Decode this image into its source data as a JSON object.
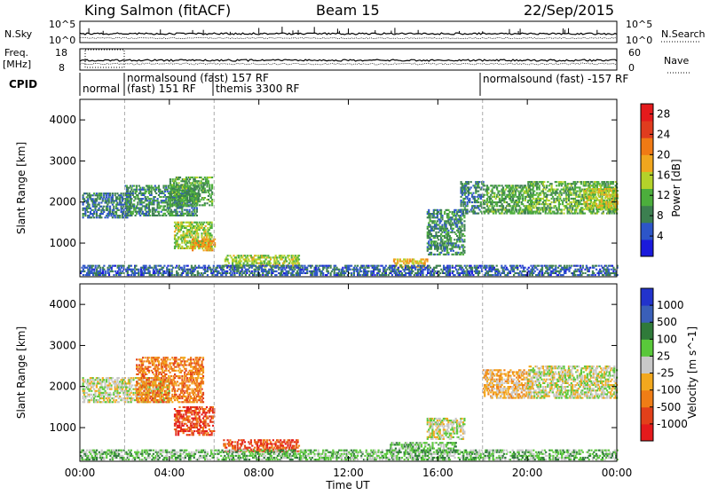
{
  "header": {
    "station": "King Salmon (fitACF)",
    "beam": "Beam 15",
    "date": "22/Sep/2015"
  },
  "info_panels": {
    "nsky_label": "N.Sky",
    "nsky_ticks": [
      "10^5",
      "10^0"
    ],
    "nsearch_label": "N.Search",
    "nsearch_ticks": [
      "10^5",
      "10^0"
    ],
    "freq_label_1": "Freq.",
    "freq_label_2": "[MHz]",
    "freq_ticks": [
      "18",
      "8"
    ],
    "nave_label": "Nave",
    "nave_ticks": [
      "60",
      "0"
    ],
    "cpid_label": "CPID",
    "cpid_programs": [
      {
        "label": "normal",
        "start_hour": 0.0
      },
      {
        "label": "normalsound (fast) 157 RF",
        "start_hour": 2.0
      },
      {
        "label": "(fast) 151 RF",
        "start_hour": 2.0
      },
      {
        "label": "themis 3300 RF",
        "start_hour": 6.0
      },
      {
        "label": "normalsound (fast) -157 RF",
        "start_hour": 18.0
      }
    ]
  },
  "colors": {
    "power": [
      "#1a1adc",
      "#2d55c8",
      "#3c7f50",
      "#4cae3c",
      "#b4d22a",
      "#f0a61e",
      "#f07a14",
      "#e03c1e",
      "#e41a1c"
    ],
    "velocity": [
      "#2233cc",
      "#3a5fb8",
      "#2f7a3a",
      "#59c83a",
      "#c8c8c8",
      "#f2a81e",
      "#ef7d16",
      "#e2401a",
      "#e41a1c"
    ]
  },
  "chart_data": [
    {
      "type": "heatmap",
      "title": "Power",
      "ylabel": "Slant Range [km]",
      "xlabel": "",
      "colorbar_label": "Power [dB]",
      "colorbar_ticks": [
        "28",
        "24",
        "20",
        "16",
        "12",
        "8",
        "4"
      ],
      "colorbar_range": [
        0,
        30
      ],
      "ylim": [
        180,
        4500
      ],
      "y_ticks": [
        "4000",
        "3000",
        "2000",
        "1000"
      ],
      "xlim_hours": [
        0,
        24
      ],
      "x_ticks": [
        "00:00",
        "04:00",
        "08:00",
        "12:00",
        "16:00",
        "20:00",
        "00:00"
      ],
      "regions": [
        {
          "t0": 0.1,
          "t1": 2.3,
          "r0": 1600,
          "r1": 2200,
          "v": 6
        },
        {
          "t0": 2.0,
          "t1": 5.2,
          "r0": 1650,
          "r1": 2400,
          "v": 8
        },
        {
          "t0": 4.0,
          "t1": 5.9,
          "r0": 1900,
          "r1": 2600,
          "v": 10
        },
        {
          "t0": 4.2,
          "t1": 5.9,
          "r0": 850,
          "r1": 1500,
          "v": 14
        },
        {
          "t0": 5.0,
          "t1": 6.0,
          "r0": 800,
          "r1": 1100,
          "v": 20
        },
        {
          "t0": 6.4,
          "t1": 9.8,
          "r0": 400,
          "r1": 700,
          "v": 14
        },
        {
          "t0": 14.0,
          "t1": 15.5,
          "r0": 400,
          "r1": 600,
          "v": 18
        },
        {
          "t0": 15.5,
          "t1": 17.2,
          "r0": 700,
          "r1": 1800,
          "v": 8
        },
        {
          "t0": 17.0,
          "t1": 18.0,
          "r0": 1700,
          "r1": 2500,
          "v": 7
        },
        {
          "t0": 18.0,
          "t1": 20.2,
          "r0": 1700,
          "r1": 2400,
          "v": 10
        },
        {
          "t0": 20.0,
          "t1": 24.0,
          "r0": 1700,
          "r1": 2500,
          "v": 11
        },
        {
          "t0": 22.5,
          "t1": 24.0,
          "r0": 1800,
          "r1": 2300,
          "v": 16
        },
        {
          "t0": 0.0,
          "t1": 24.0,
          "r0": 200,
          "r1": 450,
          "v": 5
        }
      ]
    },
    {
      "type": "heatmap",
      "title": "Velocity",
      "ylabel": "Slant Range [km]",
      "xlabel": "Time UT",
      "colorbar_label": "Velocity [m s^-1]",
      "colorbar_ticks": [
        "1000",
        "500",
        "100",
        "25",
        "-25",
        "-100",
        "-500",
        "-1000"
      ],
      "ylim": [
        180,
        4500
      ],
      "y_ticks": [
        "4000",
        "3000",
        "2000",
        "1000"
      ],
      "xlim_hours": [
        0,
        24
      ],
      "x_ticks": [
        "00:00",
        "04:00",
        "08:00",
        "12:00",
        "16:00",
        "20:00",
        "00:00"
      ],
      "regions": [
        {
          "t0": 0.1,
          "t1": 4.0,
          "r0": 1600,
          "r1": 2200,
          "v": 4
        },
        {
          "t0": 2.5,
          "t1": 5.5,
          "r0": 1600,
          "r1": 2700,
          "v": 6
        },
        {
          "t0": 4.2,
          "t1": 6.0,
          "r0": 800,
          "r1": 1500,
          "v": 7
        },
        {
          "t0": 6.4,
          "t1": 9.8,
          "r0": 400,
          "r1": 700,
          "v": 7
        },
        {
          "t0": 13.8,
          "t1": 16.8,
          "r0": 380,
          "r1": 620,
          "v": 3
        },
        {
          "t0": 15.5,
          "t1": 17.2,
          "r0": 700,
          "r1": 1200,
          "v": 4
        },
        {
          "t0": 18.0,
          "t1": 20.2,
          "r0": 1700,
          "r1": 2400,
          "v": 5
        },
        {
          "t0": 20.0,
          "t1": 24.0,
          "r0": 1700,
          "r1": 2500,
          "v": 4
        },
        {
          "t0": 0.0,
          "t1": 24.0,
          "r0": 200,
          "r1": 450,
          "v": 3
        }
      ]
    }
  ]
}
